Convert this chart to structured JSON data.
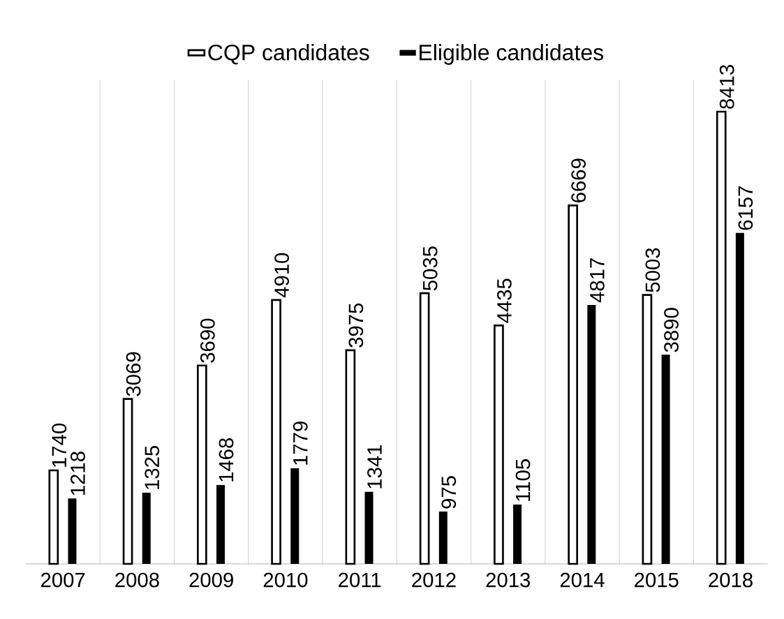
{
  "chart_data": {
    "type": "bar",
    "categories": [
      "2007",
      "2008",
      "2009",
      "2010",
      "2011",
      "2012",
      "2013",
      "2014",
      "2015",
      "2018"
    ],
    "series": [
      {
        "name": "CQP candidates",
        "color": "#000000",
        "values": [
          1740,
          3069,
          3690,
          4910,
          3975,
          5035,
          4435,
          6669,
          5003,
          8413
        ]
      },
      {
        "name": "Eligible candidates",
        "color": "#000000",
        "values": [
          1218,
          1325,
          1468,
          1779,
          1341,
          975,
          1105,
          4817,
          3890,
          6157
        ]
      }
    ],
    "data_labels": true,
    "grid": "x",
    "legend": "top"
  }
}
